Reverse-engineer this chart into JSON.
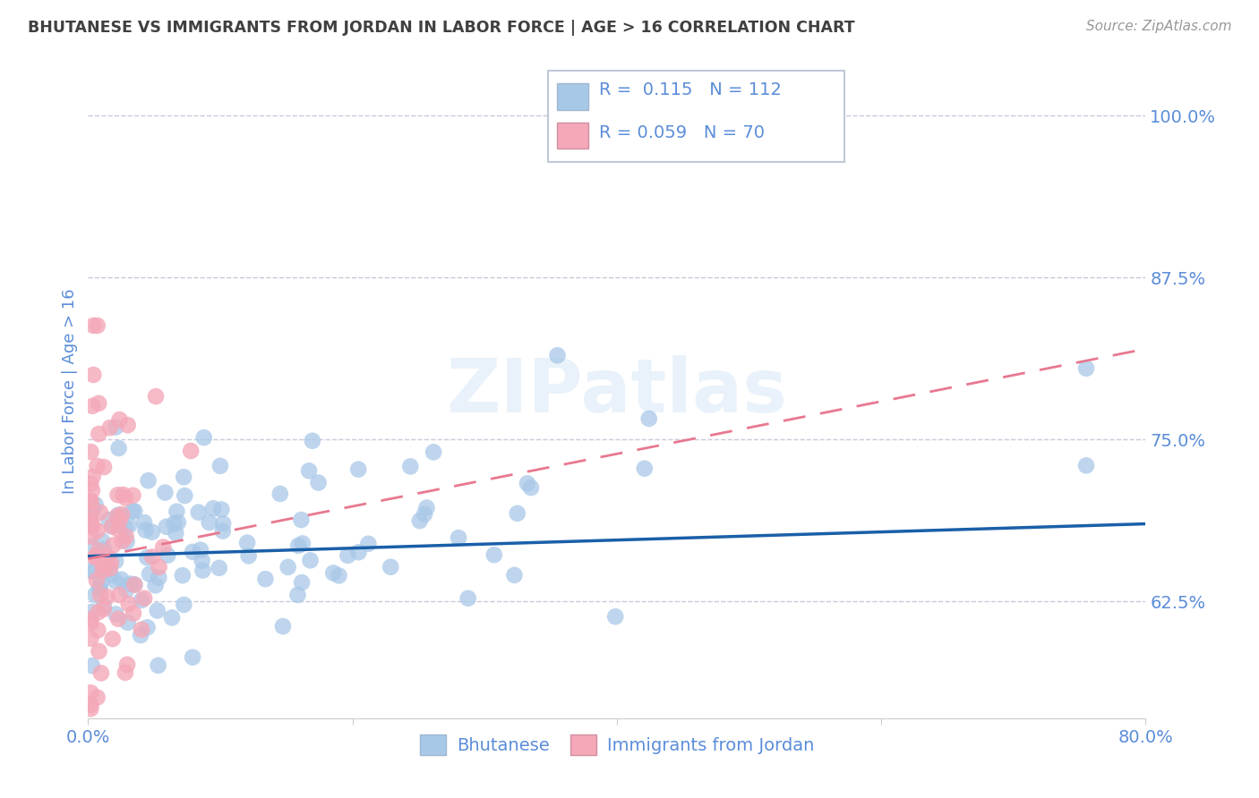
{
  "title": "BHUTANESE VS IMMIGRANTS FROM JORDAN IN LABOR FORCE | AGE > 16 CORRELATION CHART",
  "source": "Source: ZipAtlas.com",
  "ylabel": "In Labor Force | Age > 16",
  "xlim": [
    0.0,
    0.8
  ],
  "ylim": [
    0.535,
    1.04
  ],
  "yticks": [
    0.625,
    0.75,
    0.875,
    1.0
  ],
  "ytick_labels": [
    "62.5%",
    "75.0%",
    "87.5%",
    "100.0%"
  ],
  "xticks": [
    0.0,
    0.2,
    0.4,
    0.6,
    0.8
  ],
  "xtick_labels": [
    "0.0%",
    "",
    "",
    "",
    "80.0%"
  ],
  "blue_R": 0.115,
  "blue_N": 112,
  "pink_R": 0.059,
  "pink_N": 70,
  "blue_color": "#a8c8e8",
  "pink_color": "#f4a8b8",
  "blue_line_color": "#1a5fa8",
  "pink_line_color": "#e87890",
  "grid_color": "#c8c8d8",
  "title_color": "#404040",
  "tick_color": "#5b8dd9",
  "watermark": "ZIPatlas",
  "background_color": "#ffffff",
  "blue_line_x0": 0.0,
  "blue_line_x1": 0.8,
  "blue_line_y0": 0.66,
  "blue_line_y1": 0.685,
  "pink_line_x0": 0.0,
  "pink_line_x1": 0.8,
  "pink_line_y0": 0.658,
  "pink_line_y1": 0.82
}
